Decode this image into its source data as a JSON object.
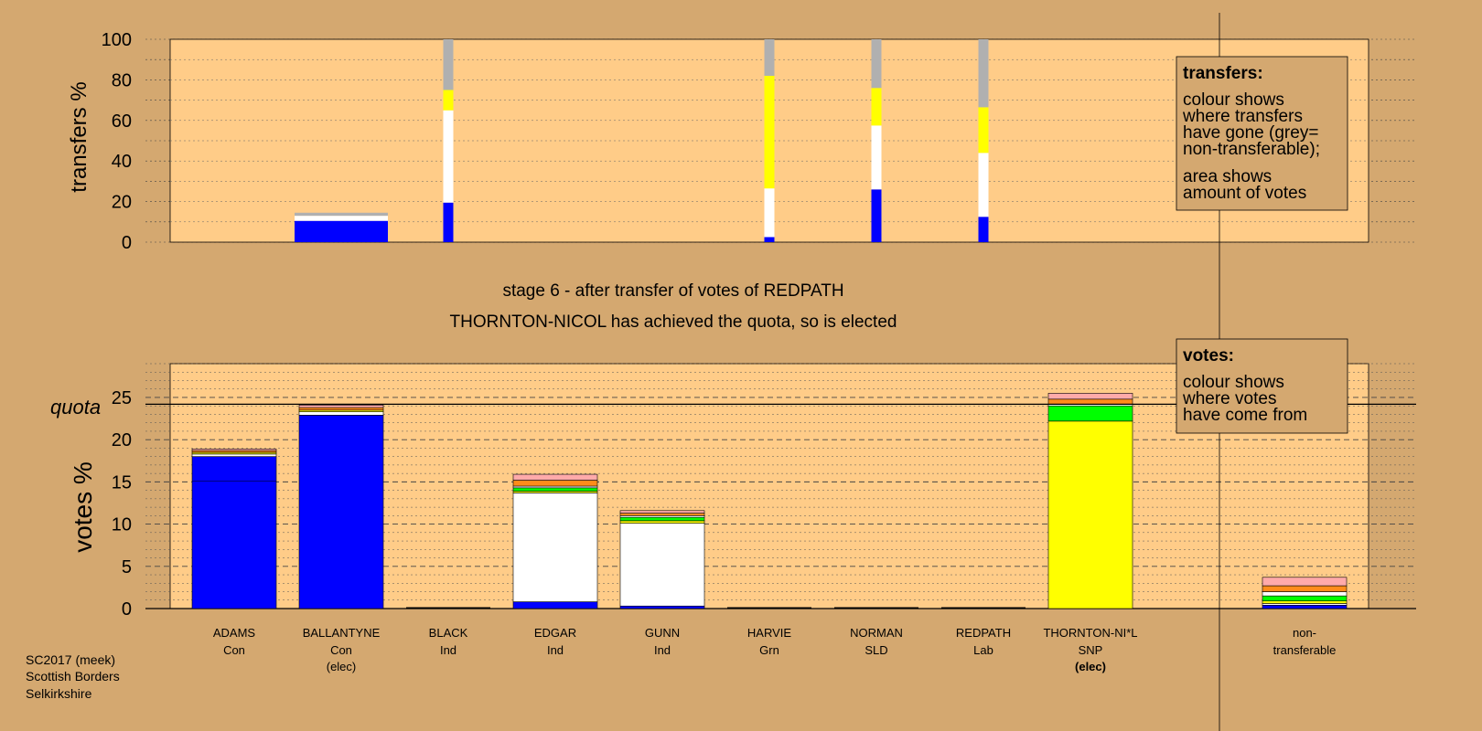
{
  "colors": {
    "background": "#D4A870",
    "plot_area": "#FFCC88",
    "legend_box": "#D4A870",
    "Con": "#0000FF",
    "Ind": "#FFFFFF",
    "SNP": "#FFFF00",
    "Grn": "#00FF00",
    "SLD": "#FF8C1A",
    "Lab": "#FFAAAA",
    "nontransferable": "#B0B0B0"
  },
  "caption": {
    "line1": "stage 6 - after transfer of votes of REDPATH",
    "line2": "THORNTON-NICOL has achieved the quota, so is elected"
  },
  "footer": {
    "line1": "SC2017 (meek)",
    "line2": "Scottish Borders",
    "line3": "Selkirkshire"
  },
  "legend_transfers": {
    "title": "transfers:",
    "lines": [
      "colour shows",
      "where transfers",
      "have gone (grey=",
      "non-transferable);",
      "area shows",
      "amount of votes"
    ]
  },
  "legend_votes": {
    "title": "votes:",
    "lines": [
      "colour shows",
      "where votes",
      "have come from"
    ]
  },
  "chart_data": [
    {
      "type": "bar",
      "ylabel": "transfers %",
      "ylim": [
        0,
        100
      ],
      "yticks": [
        "0",
        "20",
        "40",
        "60",
        "80",
        "100"
      ],
      "grid": true,
      "categories": [
        "ADAMS",
        "BALLANTYNE",
        "BLACK",
        "EDGAR",
        "GUNN",
        "HARVIE",
        "NORMAN",
        "REDPATH",
        "THORNTON-NI*L",
        "non-transferable"
      ],
      "transfer_columns": [
        {
          "candidate": "BALLANTYNE",
          "width": "wide",
          "segments": [
            {
              "party": "Con",
              "value": 10.5
            },
            {
              "party": "Ind",
              "value": 2.5
            },
            {
              "party": "nontransferable",
              "value": 1.5
            }
          ]
        },
        {
          "candidate": "BLACK",
          "width": "narrow",
          "segments": [
            {
              "party": "Con",
              "value": 19.5
            },
            {
              "party": "Ind",
              "value": 45.5
            },
            {
              "party": "SNP",
              "value": 10
            },
            {
              "party": "nontransferable",
              "value": 25
            }
          ]
        },
        {
          "candidate": "HARVIE",
          "width": "narrow",
          "segments": [
            {
              "party": "Con",
              "value": 2.5
            },
            {
              "party": "Ind",
              "value": 24
            },
            {
              "party": "SNP",
              "value": 55.5
            },
            {
              "party": "nontransferable",
              "value": 18
            }
          ]
        },
        {
          "candidate": "NORMAN",
          "width": "narrow",
          "segments": [
            {
              "party": "Con",
              "value": 26
            },
            {
              "party": "Ind",
              "value": 31.5
            },
            {
              "party": "SNP",
              "value": 18.5
            },
            {
              "party": "nontransferable",
              "value": 24
            }
          ]
        },
        {
          "candidate": "REDPATH",
          "width": "narrow",
          "segments": [
            {
              "party": "Con",
              "value": 12.5
            },
            {
              "party": "Ind",
              "value": 31.5
            },
            {
              "party": "SNP",
              "value": 22.5
            },
            {
              "party": "nontransferable",
              "value": 33.5
            }
          ]
        }
      ]
    },
    {
      "type": "bar",
      "ylabel": "votes %",
      "ylim": [
        0,
        29
      ],
      "yticks": [
        "0",
        "5",
        "10",
        "15",
        "20",
        "25"
      ],
      "quota": 24.2,
      "quota_label": "quota",
      "grid": true,
      "categories": [
        "ADAMS",
        "BALLANTYNE",
        "BLACK",
        "EDGAR",
        "GUNN",
        "HARVIE",
        "NORMAN",
        "REDPATH",
        "THORNTON-NI*L",
        "non-transferable"
      ],
      "parties": [
        "Con",
        "Con",
        "Ind",
        "Ind",
        "Ind",
        "Grn",
        "SLD",
        "Lab",
        "SNP",
        ""
      ],
      "elected_marks": [
        "",
        "(elec)",
        "",
        "",
        "",
        "",
        "",
        "",
        "(elec)",
        ""
      ],
      "category_line2": [
        "",
        "",
        "",
        "",
        "",
        "",
        "",
        "",
        "",
        "transferable"
      ],
      "category_line1_override": [
        "",
        "",
        "",
        "",
        "",
        "",
        "",
        "",
        "",
        "non-"
      ],
      "series": [
        {
          "party": "Con",
          "values": [
            18.0,
            22.9,
            0,
            0.8,
            0.3,
            0,
            0,
            0,
            0,
            0.4
          ]
        },
        {
          "party": "Ind",
          "values": [
            0.3,
            0.4,
            0,
            12.9,
            9.8,
            0,
            0,
            0,
            0,
            0.2
          ]
        },
        {
          "party": "SNP",
          "values": [
            0.2,
            0.2,
            0,
            0.2,
            0.3,
            0,
            0,
            0,
            22.2,
            0.3
          ]
        },
        {
          "party": "Grn",
          "values": [
            0,
            0,
            0,
            0.4,
            0.4,
            0,
            0,
            0,
            1.8,
            0.6
          ]
        },
        {
          "party": "White",
          "values": [
            0,
            0,
            0,
            0.2,
            0.2,
            0,
            0,
            0,
            0.2,
            0.5
          ]
        },
        {
          "party": "SLD",
          "values": [
            0.2,
            0.3,
            0,
            0.7,
            0.3,
            0,
            0,
            0,
            0.6,
            0.7
          ]
        },
        {
          "party": "Lab",
          "values": [
            0.2,
            0.3,
            0,
            0.7,
            0.3,
            0,
            0,
            0,
            0.7,
            1.0
          ]
        }
      ]
    }
  ]
}
